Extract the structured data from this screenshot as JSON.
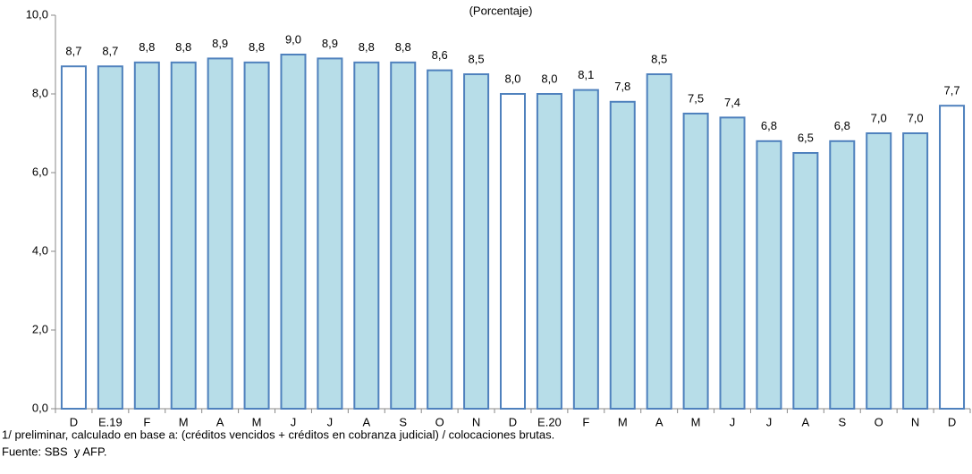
{
  "chart_data": {
    "type": "bar",
    "title": "(Porcentaje)",
    "categories": [
      "D",
      "E.19",
      "F",
      "M",
      "A",
      "M",
      "J",
      "J",
      "A",
      "S",
      "O",
      "N",
      "D",
      "E.20",
      "F",
      "M",
      "A",
      "M",
      "J",
      "J",
      "A",
      "S",
      "O",
      "N",
      "D"
    ],
    "values": [
      8.7,
      8.7,
      8.8,
      8.8,
      8.9,
      8.8,
      9.0,
      8.9,
      8.8,
      8.8,
      8.6,
      8.5,
      8.0,
      8.0,
      8.1,
      7.8,
      8.5,
      7.5,
      7.4,
      6.8,
      6.5,
      6.8,
      7.0,
      7.0,
      7.7
    ],
    "value_labels": [
      "8,7",
      "8,7",
      "8,8",
      "8,8",
      "8,9",
      "8,8",
      "9,0",
      "8,9",
      "8,8",
      "8,8",
      "8,6",
      "8,5",
      "8,0",
      "8,0",
      "8,1",
      "7,8",
      "8,5",
      "7,5",
      "7,4",
      "6,8",
      "6,5",
      "6,8",
      "7,0",
      "7,0",
      "7,7"
    ],
    "colors": [
      "#ffffff",
      "#b7dde8",
      "#b7dde8",
      "#b7dde8",
      "#b7dde8",
      "#b7dde8",
      "#b7dde8",
      "#b7dde8",
      "#b7dde8",
      "#b7dde8",
      "#b7dde8",
      "#b7dde8",
      "#ffffff",
      "#b7dde8",
      "#b7dde8",
      "#b7dde8",
      "#b7dde8",
      "#b7dde8",
      "#b7dde8",
      "#b7dde8",
      "#b7dde8",
      "#b7dde8",
      "#b7dde8",
      "#b7dde8",
      "#ffffff"
    ],
    "edge_color": "#4f81bd",
    "ylim": [
      0,
      10
    ],
    "yticks": [
      {
        "value": 0,
        "label": "0,0"
      },
      {
        "value": 2,
        "label": "2,0"
      },
      {
        "value": 4,
        "label": "4,0"
      },
      {
        "value": 6,
        "label": "6,0"
      },
      {
        "value": 8,
        "label": "8,0"
      },
      {
        "value": 10,
        "label": "10,0"
      }
    ],
    "footnotes": [
      "1/ preliminar, calculado en base a: (créditos vencidos + créditos en cobranza judicial) / colocaciones brutas.",
      "Fuente: SBS  y AFP."
    ]
  }
}
